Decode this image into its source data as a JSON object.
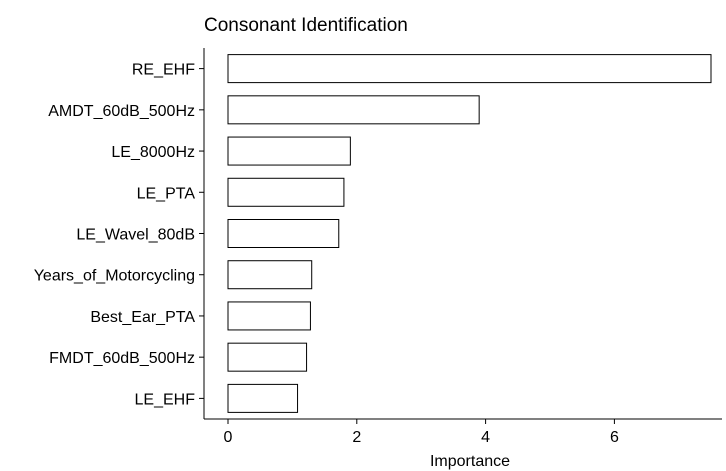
{
  "chart_data": {
    "type": "bar",
    "orientation": "horizontal",
    "title": "Consonant Identification",
    "xlabel": "Importance",
    "ylabel": "",
    "categories": [
      "RE_EHF",
      "AMDT_60dB_500Hz",
      "LE_8000Hz",
      "LE_PTA",
      "LE_Wavel_80dB",
      "Years_of_Motorcycling",
      "Best_Ear_PTA",
      "FMDT_60dB_500Hz",
      "LE_EHF"
    ],
    "values": [
      7.5,
      3.9,
      1.9,
      1.8,
      1.72,
      1.3,
      1.28,
      1.22,
      1.08
    ],
    "xlim": [
      0,
      7.5
    ],
    "xticks": [
      0,
      2,
      4,
      6
    ],
    "grid": false,
    "bar_fill": "#ffffff",
    "bar_stroke": "#000000"
  }
}
